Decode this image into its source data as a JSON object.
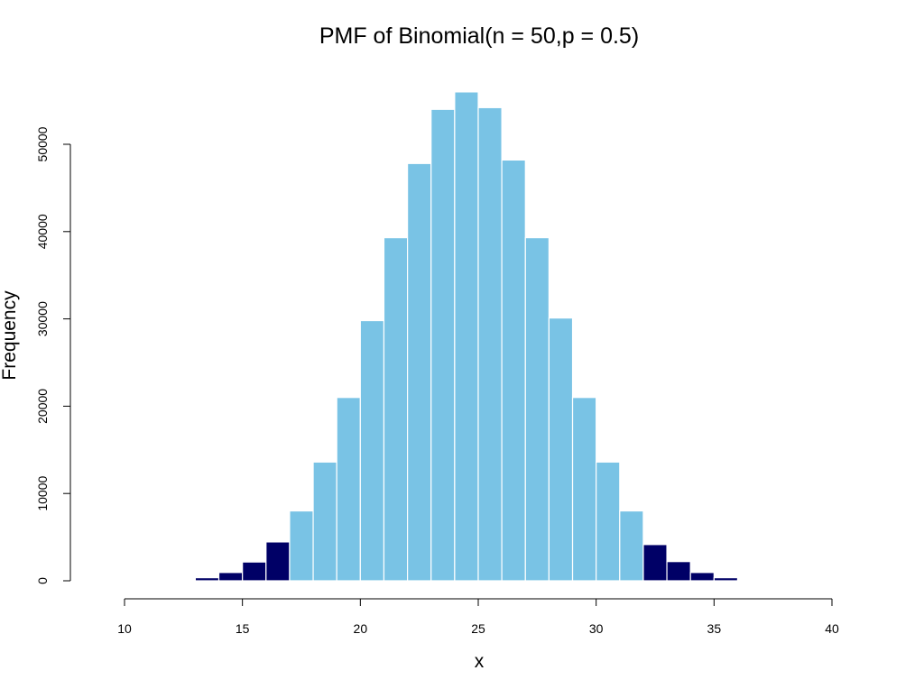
{
  "chart_data": {
    "type": "bar",
    "title": "PMF of Binomial(n = 50,p = 0.5)",
    "xlabel": "x",
    "ylabel": "Frequency",
    "xlim": [
      10,
      40
    ],
    "ylim": [
      0,
      56000
    ],
    "x_ticks": [
      10,
      15,
      20,
      25,
      30,
      35,
      40
    ],
    "y_ticks": [
      0,
      10000,
      20000,
      30000,
      40000,
      50000
    ],
    "bins": [
      {
        "x0": 11,
        "x1": 12,
        "value": 15,
        "color": "#000066"
      },
      {
        "x0": 12,
        "x1": 13,
        "value": 90,
        "color": "#000066"
      },
      {
        "x0": 13,
        "x1": 14,
        "value": 350,
        "color": "#000066"
      },
      {
        "x0": 14,
        "x1": 15,
        "value": 950,
        "color": "#000066"
      },
      {
        "x0": 15,
        "x1": 16,
        "value": 2150,
        "color": "#000066"
      },
      {
        "x0": 16,
        "x1": 17,
        "value": 4450,
        "color": "#000066"
      },
      {
        "x0": 17,
        "x1": 18,
        "value": 8000,
        "color": "#79C3E5"
      },
      {
        "x0": 18,
        "x1": 19,
        "value": 13600,
        "color": "#79C3E5"
      },
      {
        "x0": 19,
        "x1": 20,
        "value": 21000,
        "color": "#79C3E5"
      },
      {
        "x0": 20,
        "x1": 21,
        "value": 29800,
        "color": "#79C3E5"
      },
      {
        "x0": 21,
        "x1": 22,
        "value": 39300,
        "color": "#79C3E5"
      },
      {
        "x0": 22,
        "x1": 23,
        "value": 47800,
        "color": "#79C3E5"
      },
      {
        "x0": 23,
        "x1": 24,
        "value": 54000,
        "color": "#79C3E5"
      },
      {
        "x0": 24,
        "x1": 25,
        "value": 56000,
        "color": "#79C3E5"
      },
      {
        "x0": 25,
        "x1": 26,
        "value": 54200,
        "color": "#79C3E5"
      },
      {
        "x0": 26,
        "x1": 27,
        "value": 48200,
        "color": "#79C3E5"
      },
      {
        "x0": 27,
        "x1": 28,
        "value": 39300,
        "color": "#79C3E5"
      },
      {
        "x0": 28,
        "x1": 29,
        "value": 30100,
        "color": "#79C3E5"
      },
      {
        "x0": 29,
        "x1": 30,
        "value": 21000,
        "color": "#79C3E5"
      },
      {
        "x0": 30,
        "x1": 31,
        "value": 13600,
        "color": "#79C3E5"
      },
      {
        "x0": 31,
        "x1": 32,
        "value": 8000,
        "color": "#79C3E5"
      },
      {
        "x0": 32,
        "x1": 33,
        "value": 4150,
        "color": "#000066"
      },
      {
        "x0": 33,
        "x1": 34,
        "value": 2200,
        "color": "#000066"
      },
      {
        "x0": 34,
        "x1": 35,
        "value": 950,
        "color": "#000066"
      },
      {
        "x0": 35,
        "x1": 36,
        "value": 350,
        "color": "#000066"
      },
      {
        "x0": 36,
        "x1": 37,
        "value": 90,
        "color": "#000066"
      },
      {
        "x0": 37,
        "x1": 38,
        "value": 15,
        "color": "#000066"
      }
    ],
    "bar_border_color": "#ffffff",
    "grid": false,
    "legend": "none"
  }
}
